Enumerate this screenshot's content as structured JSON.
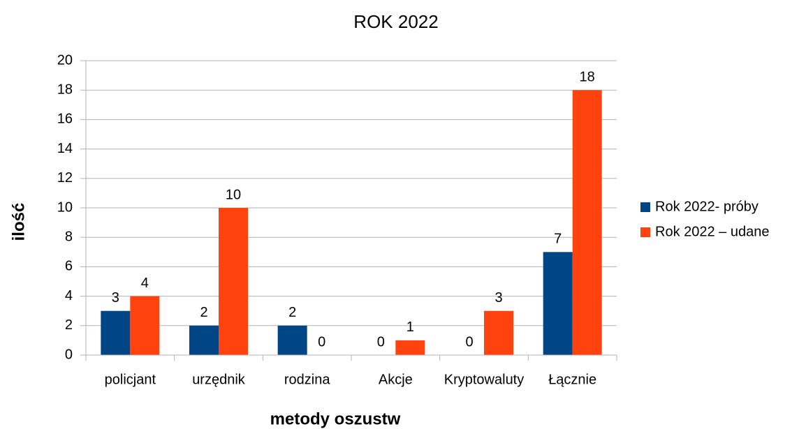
{
  "chart_data": {
    "type": "bar",
    "title": "ROK 2022",
    "x_label": "metody oszustw",
    "y_label": "ilość",
    "categories": [
      "policjant",
      "urzędnik",
      "rodzina",
      "Akcje",
      "Kryptowaluty",
      "Łącznie"
    ],
    "series": [
      {
        "name": "Rok 2022- próby",
        "color": "#004586",
        "values": [
          3,
          2,
          2,
          0,
          0,
          7
        ]
      },
      {
        "name": "Rok 2022 – udane",
        "color": "#ff420e",
        "values": [
          4,
          10,
          0,
          1,
          3,
          18
        ]
      }
    ],
    "ylim": [
      0,
      20
    ],
    "yticks": [
      0,
      2,
      4,
      6,
      8,
      10,
      12,
      14,
      16,
      18,
      20
    ],
    "grid": true,
    "legend": "right"
  }
}
